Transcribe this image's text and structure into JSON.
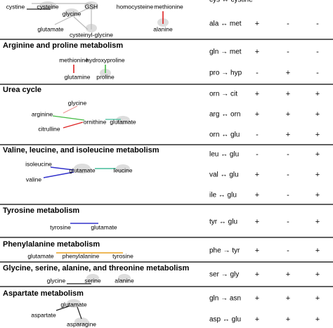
{
  "sections": [
    {
      "nodes": [
        "cystine",
        "cysteine",
        "glycine",
        "GSH",
        "homocysteine",
        "methionine",
        "glutamate",
        "cysteinyl-glycine",
        "alanine"
      ],
      "rows": [
        {
          "reaction": "cys ↔ cystine"
        },
        {
          "reaction": "ala ↔ met",
          "marks": [
            "+",
            "-",
            "-"
          ]
        }
      ]
    },
    {
      "title": "Arginine and proline metabolism",
      "nodes": [
        "methionine",
        "hydroxyproline",
        "glutamine",
        "proline"
      ],
      "rows": [
        {
          "reaction": "gln → met",
          "marks": [
            "+",
            "-",
            "-"
          ]
        },
        {
          "reaction": "pro → hyp",
          "marks": [
            "-",
            "+",
            "-"
          ]
        }
      ]
    },
    {
      "title": "Urea cycle",
      "nodes": [
        "glycine",
        "arginine",
        "ornithine",
        "glutamate",
        "citrulline"
      ],
      "rows": [
        {
          "reaction": "orn → cit",
          "marks": [
            "+",
            "+",
            "+"
          ]
        },
        {
          "reaction": "arg ↔ orn",
          "marks": [
            "+",
            "+",
            "+"
          ]
        },
        {
          "reaction": "orn ↔ glu",
          "marks": [
            "-",
            "+",
            "+"
          ]
        }
      ]
    },
    {
      "title": "Valine, leucine, and isoleucine metabolism",
      "nodes": [
        "isoleucine",
        "glutamate",
        "leucine",
        "valine"
      ],
      "rows": [
        {
          "reaction": "leu ↔ glu",
          "marks": [
            "-",
            "-",
            "+"
          ]
        },
        {
          "reaction": "val ↔ glu",
          "marks": [
            "+",
            "-",
            "+"
          ]
        },
        {
          "reaction": "ile ↔ glu",
          "marks": [
            "+",
            "-",
            "+"
          ]
        }
      ]
    },
    {
      "title": "Tyrosine metabolism",
      "nodes": [
        "tyrosine",
        "glutamate"
      ],
      "rows": [
        {
          "reaction": "tyr ↔ glu",
          "marks": [
            "+",
            "-",
            "+"
          ]
        }
      ]
    },
    {
      "title": "Phenylalanine metabolism",
      "nodes": [
        "glutamate",
        "phenylalanine",
        "tyrosine"
      ],
      "rows": [
        {
          "reaction": "phe → tyr",
          "marks": [
            "+",
            "-",
            "+"
          ]
        }
      ]
    },
    {
      "title": "Glycine, serine, alanine, and threonine metabolism",
      "nodes": [
        "glycine",
        "serine",
        "alanine"
      ],
      "rows": [
        {
          "reaction": "ser → gly",
          "marks": [
            "+",
            "+",
            "+"
          ]
        }
      ]
    },
    {
      "title": "Aspartate metabolism",
      "nodes": [
        "glutamate",
        "aspartate",
        "asparagine"
      ],
      "rows": [
        {
          "reaction": "gln → asn",
          "marks": [
            "+",
            "+",
            "+"
          ]
        },
        {
          "reaction": "asp ↔ glu",
          "marks": [
            "+",
            "+",
            "+"
          ]
        }
      ]
    }
  ]
}
